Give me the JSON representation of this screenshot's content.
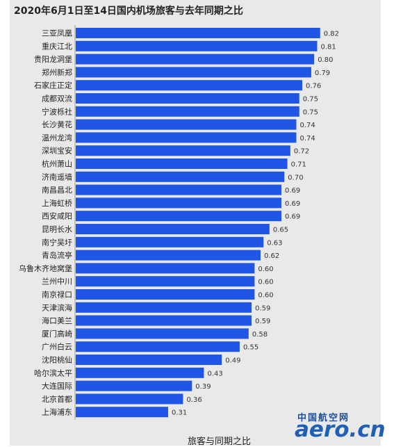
{
  "chart_data": {
    "type": "bar",
    "orientation": "horizontal",
    "title": "2020年6月1日至14日国内机场旅客与去年同期之比",
    "xlabel": "旅客与同期之比",
    "ylabel": "",
    "xlim": [
      0,
      0.9
    ],
    "grid": false,
    "bar_color": "#1f56e6",
    "categories": [
      "三亚凤凰",
      "重庆江北",
      "贵阳龙洞堡",
      "郑州新郑",
      "石家庄正定",
      "成都双流",
      "宁波栎社",
      "长沙黄花",
      "温州龙湾",
      "深圳宝安",
      "杭州萧山",
      "济南遥墙",
      "南昌昌北",
      "上海虹桥",
      "西安咸阳",
      "昆明长水",
      "南宁吴圩",
      "青岛流亭",
      "乌鲁木齐地窝堡",
      "兰州中川",
      "南京禄口",
      "天津滨海",
      "海口美兰",
      "厦门高崎",
      "广州白云",
      "沈阳桃仙",
      "哈尔滨太平",
      "大连国际",
      "北京首都",
      "上海浦东"
    ],
    "values": [
      0.82,
      0.81,
      0.8,
      0.79,
      0.76,
      0.75,
      0.75,
      0.74,
      0.74,
      0.72,
      0.71,
      0.7,
      0.69,
      0.69,
      0.69,
      0.65,
      0.63,
      0.62,
      0.6,
      0.6,
      0.6,
      0.59,
      0.59,
      0.58,
      0.55,
      0.49,
      0.43,
      0.39,
      0.36,
      0.31
    ],
    "value_labels": [
      "0.82",
      "0.81",
      "0.80",
      "0.79",
      "0.76",
      "0.75",
      "0.75",
      "0.74",
      "0.74",
      "0.72",
      "0.71",
      "0.70",
      "0.69",
      "0.69",
      "0.69",
      "0.65",
      "0.63",
      "0.62",
      "0.60",
      "0.60",
      "0.60",
      "0.59",
      "0.59",
      "0.58",
      "0.55",
      "0.49",
      "0.43",
      "0.39",
      "0.36",
      "0.31"
    ]
  },
  "watermark": {
    "cn": "中国航空网",
    "en": "aero.cn"
  }
}
